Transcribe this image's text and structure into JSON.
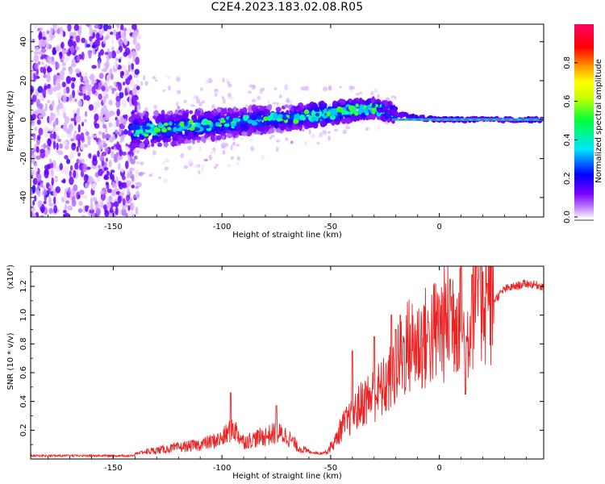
{
  "figure": {
    "title": "C2E4.2023.183.02.08.R05"
  },
  "chart_data": [
    {
      "type": "heatmap",
      "title": "C2E4.2023.183.02.08.R05",
      "xlabel": "Height of straight line (km)",
      "ylabel": "Frequency (Hz)",
      "xlim": [
        -188,
        48
      ],
      "ylim": [
        -50,
        49
      ],
      "xticks": [
        -150,
        -100,
        -50,
        0
      ],
      "xtick_labels": [
        "-150",
        "-100",
        "-50",
        "0"
      ],
      "yticks": [
        -40,
        -20,
        0,
        20,
        40
      ],
      "ytick_labels": [
        "-40",
        "-20",
        "0",
        "20",
        "40"
      ],
      "colorbar": {
        "label": "Normalized spectral amplitude",
        "range": [
          0,
          1
        ],
        "ticks": [
          0,
          0.2,
          0.4,
          0.6,
          0.8
        ],
        "tick_labels": [
          "0.0",
          "0.2",
          "0.4",
          "0.6",
          "0.8"
        ],
        "colormap": [
          "#e6e6ff",
          "#7a00ff",
          "#0000ff",
          "#00e5ff",
          "#00ff3c",
          "#c8ff00",
          "#ffff00",
          "#ff9900",
          "#ff0000",
          "#ff0066"
        ]
      },
      "ridge": {
        "description_points_x": [
          -170,
          -140,
          -120,
          -100,
          -80,
          -60,
          -45,
          -30,
          -20,
          -10,
          0,
          10,
          20,
          30,
          48
        ],
        "description_points_y": [
          -4,
          -6,
          -4,
          -2,
          0,
          2,
          4,
          6,
          3,
          1,
          0,
          0,
          0,
          0,
          0
        ]
      },
      "grid": false
    },
    {
      "type": "line",
      "xlabel": "Height of straight line (km)",
      "ylabel": "SNR (10 * v/v)",
      "y_multiplier": "(x10⁴)",
      "xlim": [
        -188,
        48
      ],
      "ylim": [
        0,
        1.34
      ],
      "xticks": [
        -150,
        -100,
        -50,
        0
      ],
      "xtick_labels": [
        "-150",
        "-100",
        "-50",
        "0"
      ],
      "yticks": [
        0.2,
        0.4,
        0.6,
        0.8,
        1.0,
        1.2
      ],
      "ytick_labels": [
        "0.2",
        "0.4",
        "0.6",
        "0.8",
        "1.0",
        "1.2"
      ],
      "series": [
        {
          "color": "#ee2222",
          "x": [
            -188,
            -170,
            -150,
            -140,
            -130,
            -120,
            -110,
            -100,
            -95,
            -90,
            -80,
            -75,
            -70,
            -65,
            -60,
            -55,
            -52,
            -48,
            -45,
            -40,
            -35,
            -30,
            -25,
            -20,
            -15,
            -10,
            -5,
            0,
            5,
            10,
            12,
            15,
            20,
            25,
            30,
            35,
            40,
            48
          ],
          "y": [
            0.02,
            0.02,
            0.02,
            0.04,
            0.06,
            0.08,
            0.1,
            0.14,
            0.22,
            0.12,
            0.16,
            0.18,
            0.16,
            0.08,
            0.05,
            0.04,
            0.05,
            0.12,
            0.22,
            0.3,
            0.4,
            0.45,
            0.5,
            0.62,
            0.78,
            0.8,
            0.85,
            0.9,
            0.98,
            1.05,
            0.7,
            1.1,
            1.15,
            1.1,
            1.18,
            1.2,
            1.22,
            1.2
          ],
          "peaks_x": [
            -96,
            -75,
            -40,
            -30,
            -22,
            -20,
            -18,
            -5,
            0,
            5,
            10,
            12,
            15,
            18,
            20,
            22
          ],
          "peaks_y": [
            0.46,
            0.37,
            0.75,
            0.85,
            1.0,
            0.9,
            1.0,
            0.95,
            1.1,
            1.25,
            1.34,
            0.45,
            1.28,
            1.25,
            1.3,
            1.22
          ]
        }
      ],
      "grid": false
    }
  ]
}
